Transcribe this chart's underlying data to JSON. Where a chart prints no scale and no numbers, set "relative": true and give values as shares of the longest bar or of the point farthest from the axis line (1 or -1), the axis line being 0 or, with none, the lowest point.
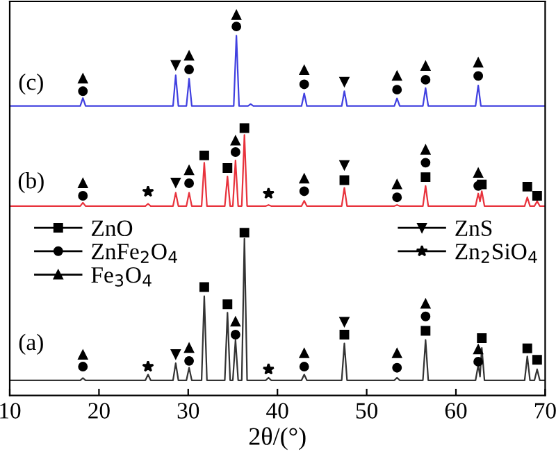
{
  "chart_data": {
    "type": "line",
    "relative": true,
    "xlabel": "2θ/(°)",
    "xlim": [
      10,
      70
    ],
    "xticks": [
      10,
      20,
      30,
      40,
      50,
      60,
      70
    ],
    "tick_labels": "x",
    "grid": false,
    "legend": "center left",
    "series": [
      {
        "color": "#333333",
        "x": [
          10,
          17.9,
          18.2,
          18.5,
          25.2,
          25.5,
          25.8,
          28.3,
          28.6,
          28.9,
          29.8,
          30.1,
          30.4,
          31.5,
          31.8,
          32.1,
          34.1,
          34.4,
          34.7,
          35.0,
          35.3,
          35.6,
          36.0,
          36.3,
          36.6,
          38.7,
          39.0,
          39.3,
          42.7,
          43.0,
          43.3,
          47.2,
          47.5,
          47.8,
          53.1,
          53.4,
          53.7,
          56.3,
          56.6,
          56.9,
          62.2,
          62.5,
          62.7,
          62.9,
          63.2,
          67.7,
          68.0,
          68.3,
          68.8,
          69.1,
          69.4,
          70
        ],
        "values": [
          0.04,
          0.04,
          0.046,
          0.04,
          0.04,
          0.055,
          0.04,
          0.04,
          0.085,
          0.04,
          0.04,
          0.073,
          0.04,
          0.04,
          0.261,
          0.04,
          0.04,
          0.218,
          0.04,
          0.04,
          0.146,
          0.04,
          0.04,
          0.412,
          0.04,
          0.04,
          0.047,
          0.04,
          0.04,
          0.055,
          0.04,
          0.04,
          0.137,
          0.04,
          0.04,
          0.047,
          0.04,
          0.04,
          0.146,
          0.04,
          0.04,
          0.08,
          0.05,
          0.125,
          0.04,
          0.04,
          0.103,
          0.04,
          0.04,
          0.069,
          0.04,
          0.04
        ]
      },
      {
        "color": "#e8323c",
        "x": [
          10,
          17.9,
          18.2,
          18.5,
          25.2,
          25.5,
          25.8,
          28.3,
          28.6,
          28.9,
          29.8,
          30.1,
          30.4,
          31.5,
          31.8,
          32.1,
          34.1,
          34.4,
          34.7,
          35.0,
          35.3,
          35.6,
          36.0,
          36.3,
          36.6,
          38.7,
          39.0,
          39.3,
          42.7,
          43.0,
          43.3,
          47.2,
          47.5,
          47.8,
          53.1,
          53.4,
          53.7,
          56.3,
          56.6,
          56.9,
          62.2,
          62.5,
          62.7,
          62.9,
          63.2,
          67.7,
          68.0,
          68.3,
          68.8,
          69.1,
          69.4,
          70
        ],
        "values": [
          0.498,
          0.498,
          0.507,
          0.498,
          0.498,
          0.504,
          0.498,
          0.498,
          0.533,
          0.498,
          0.498,
          0.533,
          0.498,
          0.498,
          0.612,
          0.498,
          0.498,
          0.576,
          0.498,
          0.498,
          0.618,
          0.498,
          0.498,
          0.685,
          0.498,
          0.498,
          0.501,
          0.498,
          0.498,
          0.512,
          0.498,
          0.498,
          0.546,
          0.498,
          0.498,
          0.501,
          0.498,
          0.498,
          0.551,
          0.498,
          0.498,
          0.531,
          0.51,
          0.537,
          0.498,
          0.498,
          0.521,
          0.498,
          0.498,
          0.511,
          0.498,
          0.498
        ]
      },
      {
        "color": "#4040e0",
        "x": [
          10,
          17.9,
          18.2,
          18.5,
          28.3,
          28.6,
          28.9,
          29.8,
          30.1,
          30.4,
          35.1,
          35.4,
          35.7,
          36.7,
          37.0,
          37.3,
          42.7,
          43.0,
          43.3,
          47.2,
          47.5,
          47.8,
          53.1,
          53.4,
          53.7,
          56.3,
          56.6,
          56.9,
          62.2,
          62.5,
          62.8,
          70
        ],
        "values": [
          0.761,
          0.761,
          0.782,
          0.761,
          0.761,
          0.842,
          0.761,
          0.761,
          0.833,
          0.761,
          0.761,
          0.946,
          0.761,
          0.761,
          0.766,
          0.761,
          0.761,
          0.794,
          0.761,
          0.761,
          0.8,
          0.761,
          0.761,
          0.781,
          0.761,
          0.761,
          0.808,
          0.761,
          0.761,
          0.815,
          0.761,
          0.761
        ]
      },
      {
        "type": "scatter",
        "name": "ZnO",
        "marker": "square",
        "color": "#000000",
        "x": [
          31.8,
          34.4,
          36.3,
          47.5,
          56.6,
          62.9,
          68.0,
          69.1,
          31.8,
          34.4,
          36.3,
          47.5,
          56.6,
          62.9,
          68.0,
          69.1
        ],
        "values": [
          0.285,
          0.24,
          0.428,
          0.16,
          0.17,
          0.151,
          0.124,
          0.094,
          0.631,
          0.598,
          0.703,
          0.566,
          0.574,
          0.555,
          0.549,
          0.525
        ]
      },
      {
        "type": "scatter",
        "name": "ZnFe$_{2}$O$_{4}$",
        "marker": "circle",
        "color": "#000000",
        "x": [
          18.2,
          30.1,
          35.3,
          43.0,
          53.4,
          56.6,
          62.5,
          18.2,
          30.1,
          35.3,
          43.0,
          53.4,
          56.6,
          62.5,
          18.2,
          30.1,
          35.4,
          43.0,
          53.4,
          56.6,
          62.5
        ],
        "values": [
          0.076,
          0.091,
          0.16,
          0.076,
          0.073,
          0.208,
          0.089,
          0.525,
          0.558,
          0.64,
          0.537,
          0.521,
          0.612,
          0.551,
          0.8,
          0.857,
          0.97,
          0.818,
          0.804,
          0.83,
          0.84
        ]
      },
      {
        "type": "scatter",
        "name": "Fe$_{3}$O$_{4}$",
        "marker": "triangle",
        "color": "#000000",
        "x": [
          18.2,
          30.1,
          35.3,
          43.0,
          53.4,
          56.6,
          62.5,
          18.2,
          30.1,
          35.3,
          43.0,
          53.4,
          56.6,
          62.5,
          18.2,
          30.1,
          35.4,
          43.0,
          53.4,
          56.6,
          62.5
        ],
        "values": [
          0.107,
          0.125,
          0.194,
          0.111,
          0.111,
          0.241,
          0.121,
          0.558,
          0.592,
          0.67,
          0.57,
          0.555,
          0.646,
          0.585,
          0.833,
          0.893,
          1.0,
          0.855,
          0.84,
          0.866,
          0.875
        ]
      },
      {
        "type": "scatter",
        "name": "ZnS",
        "marker": "triangle_down",
        "color": "#000000",
        "x": [
          28.6,
          47.5,
          28.6,
          47.5,
          28.6,
          47.5
        ],
        "values": [
          0.109,
          0.194,
          0.56,
          0.606,
          0.869,
          0.825
        ]
      },
      {
        "type": "scatter",
        "name": "Zn$_{2}$SiO$_{4}$",
        "marker": "star",
        "color": "#000000",
        "x": [
          25.5,
          39.0,
          25.5,
          39.0
        ],
        "values": [
          0.076,
          0.069,
          0.536,
          0.531
        ]
      }
    ],
    "annotations": [
      "(a)",
      "(b)",
      "(c)"
    ]
  }
}
